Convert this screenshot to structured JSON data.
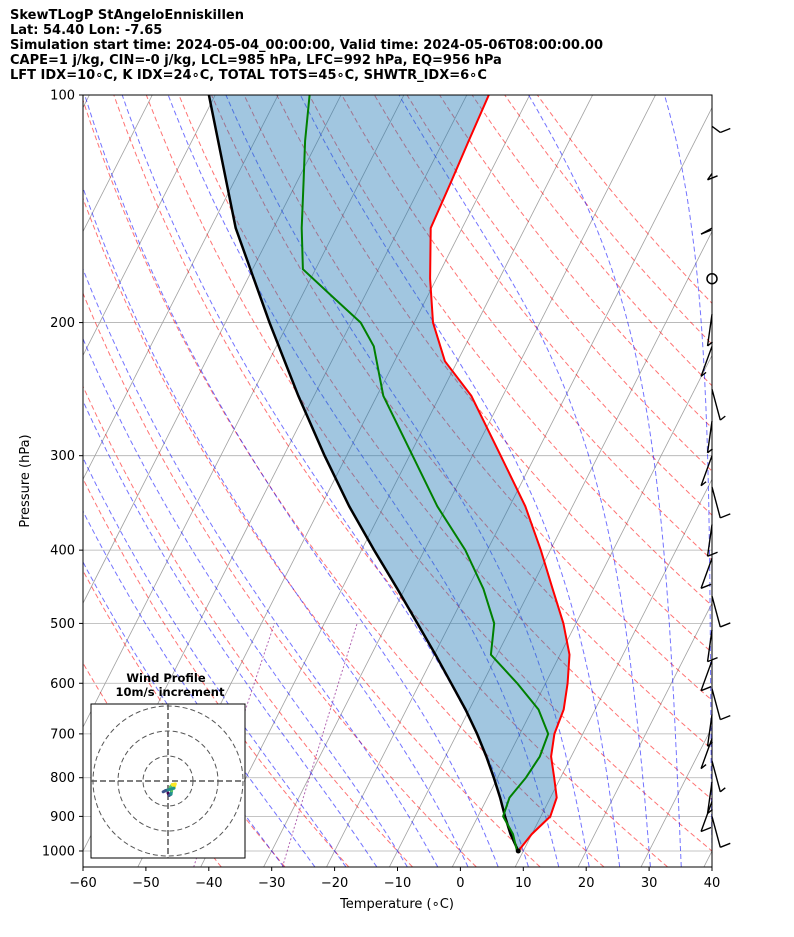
{
  "header": {
    "line1": "SkewTLogP StAngeloEnniskillen",
    "line2": "Lat: 54.40   Lon: -7.65",
    "line3": "Simulation start time: 2024-05-04_00:00:00, Valid time: 2024-05-06T08:00:00.00",
    "line4": "CAPE=1 j/kg, CIN=-0 j/kg, LCL=985 hPa, LFC=992 hPa, EQ=956 hPa",
    "line5": "LFT IDX=10∘C, K IDX=24∘C, TOTAL TOTS=45∘C, SHWTR_IDX=6∘C"
  },
  "chart_data": {
    "type": "skewt",
    "xlabel": "Temperature (∘C)",
    "ylabel": "Pressure (hPa)",
    "xlim": [
      -60,
      40
    ],
    "ylim": [
      1050,
      100
    ],
    "y_scale": "log",
    "x_ticks": [
      "−60",
      "−50",
      "−40",
      "−30",
      "−20",
      "−10",
      "0",
      "10",
      "20",
      "30",
      "40"
    ],
    "x_tick_values": [
      -60,
      -50,
      -40,
      -30,
      -20,
      -10,
      0,
      10,
      20,
      30,
      40
    ],
    "y_ticks": [
      "1000",
      "900",
      "800",
      "700",
      "600",
      "500",
      "400",
      "300",
      "200",
      "100"
    ],
    "y_tick_values": [
      1000,
      900,
      800,
      700,
      600,
      500,
      400,
      300,
      200,
      100
    ],
    "grid": true,
    "colors": {
      "temperature": "#ff0000",
      "dewpoint": "#008000",
      "parcel": "#000000",
      "cape_fill": "#1f77b4",
      "dry_adiabat": "#ff0000",
      "moist_adiabat": "#0000ff",
      "mixing_ratio": "#800080",
      "isotherm": "#808080"
    },
    "series": [
      {
        "key": "temperature",
        "points": [
          [
            1000,
            9.2
          ],
          [
            950,
            10.0
          ],
          [
            900,
            11.5
          ],
          [
            850,
            11.0
          ],
          [
            800,
            9.0
          ],
          [
            750,
            6.8
          ],
          [
            700,
            5.5
          ],
          [
            650,
            5.0
          ],
          [
            600,
            3.5
          ],
          [
            550,
            1.5
          ],
          [
            500,
            -2.0
          ],
          [
            450,
            -6.5
          ],
          [
            400,
            -11.5
          ],
          [
            350,
            -17.5
          ],
          [
            300,
            -25.5
          ],
          [
            250,
            -35.0
          ],
          [
            225,
            -42.0
          ],
          [
            200,
            -47.0
          ],
          [
            175,
            -51.0
          ],
          [
            150,
            -55.0
          ],
          [
            130,
            -55.5
          ],
          [
            115,
            -56.0
          ],
          [
            100,
            -56.5
          ]
        ]
      },
      {
        "key": "dewpoint",
        "points": [
          [
            1000,
            9.0
          ],
          [
            950,
            7.0
          ],
          [
            900,
            4.0
          ],
          [
            850,
            3.5
          ],
          [
            800,
            4.5
          ],
          [
            750,
            5.0
          ],
          [
            700,
            4.5
          ],
          [
            650,
            1.0
          ],
          [
            600,
            -4.5
          ],
          [
            550,
            -11.0
          ],
          [
            500,
            -13.0
          ],
          [
            450,
            -17.5
          ],
          [
            400,
            -23.5
          ],
          [
            350,
            -31.5
          ],
          [
            300,
            -39.5
          ],
          [
            250,
            -49.0
          ],
          [
            215,
            -54.5
          ],
          [
            200,
            -58.5
          ],
          [
            185,
            -65.0
          ],
          [
            170,
            -72.0
          ],
          [
            150,
            -75.5
          ],
          [
            130,
            -79.0
          ],
          [
            115,
            -82.0
          ],
          [
            100,
            -85.0
          ]
        ]
      },
      {
        "key": "parcel",
        "points": [
          [
            1000,
            9.2
          ],
          [
            950,
            6.6
          ],
          [
            900,
            4.3
          ],
          [
            850,
            2.0
          ],
          [
            800,
            -0.6
          ],
          [
            750,
            -3.5
          ],
          [
            700,
            -6.8
          ],
          [
            650,
            -10.6
          ],
          [
            600,
            -15.0
          ],
          [
            550,
            -19.8
          ],
          [
            500,
            -25.2
          ],
          [
            450,
            -31.2
          ],
          [
            400,
            -38.0
          ],
          [
            350,
            -45.5
          ],
          [
            300,
            -53.5
          ],
          [
            250,
            -62.5
          ],
          [
            200,
            -73.0
          ],
          [
            150,
            -86.0
          ],
          [
            100,
            -101.0
          ]
        ]
      }
    ],
    "wind_barbs": {
      "columns": [
        {
          "speeds_kt": [
            10,
            10,
            10,
            0,
            5,
            5,
            5,
            5,
            5,
            10,
            10,
            10,
            10,
            10,
            10,
            10,
            5,
            5,
            5,
            5,
            10,
            10
          ]
        }
      ],
      "pressures": [
        110,
        127,
        150,
        175,
        195,
        215,
        245,
        270,
        300,
        330,
        370,
        410,
        460,
        510,
        560,
        610,
        660,
        710,
        760,
        810,
        860,
        900
      ]
    },
    "inset": {
      "title": "Wind Profile",
      "subtitle": "10m/s increment",
      "rings": 3,
      "hodograph": [
        [
          0.0,
          0.0
        ],
        [
          0.2,
          -0.4
        ],
        [
          0.5,
          -0.2
        ],
        [
          0.6,
          0.4
        ],
        [
          0.4,
          1.0
        ],
        [
          0.7,
          1.4
        ],
        [
          1.2,
          1.5
        ],
        [
          1.0,
          0.8
        ],
        [
          -0.4,
          0.4
        ],
        [
          -0.8,
          0.2
        ]
      ]
    }
  }
}
